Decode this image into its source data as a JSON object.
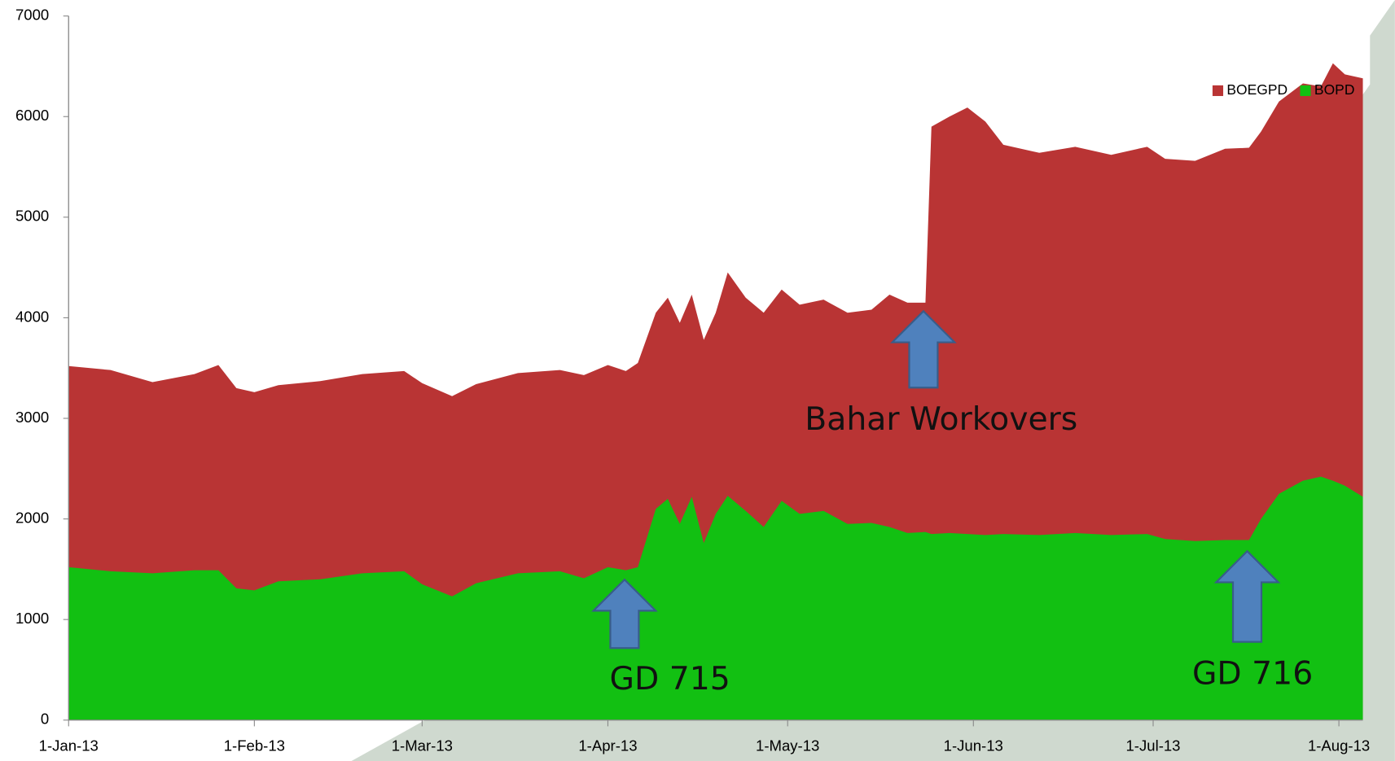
{
  "chart_data": {
    "type": "area",
    "x": [
      "2013-01-01",
      "2013-01-08",
      "2013-01-15",
      "2013-01-22",
      "2013-01-26",
      "2013-01-29",
      "2013-02-01",
      "2013-02-05",
      "2013-02-12",
      "2013-02-19",
      "2013-02-26",
      "2013-03-01",
      "2013-03-06",
      "2013-03-10",
      "2013-03-17",
      "2013-03-24",
      "2013-03-28",
      "2013-04-01",
      "2013-04-04",
      "2013-04-06",
      "2013-04-09",
      "2013-04-11",
      "2013-04-13",
      "2013-04-15",
      "2013-04-17",
      "2013-04-19",
      "2013-04-21",
      "2013-04-24",
      "2013-04-27",
      "2013-04-30",
      "2013-05-03",
      "2013-05-07",
      "2013-05-11",
      "2013-05-15",
      "2013-05-18",
      "2013-05-21",
      "2013-05-24",
      "2013-05-25",
      "2013-05-28",
      "2013-05-31",
      "2013-06-03",
      "2013-06-06",
      "2013-06-12",
      "2013-06-18",
      "2013-06-24",
      "2013-06-30",
      "2013-07-03",
      "2013-07-08",
      "2013-07-13",
      "2013-07-17",
      "2013-07-19",
      "2013-07-22",
      "2013-07-26",
      "2013-07-29",
      "2013-07-31",
      "2013-08-02",
      "2013-08-05"
    ],
    "series": [
      {
        "name": "BOEGPD",
        "color": "#b93434",
        "values": [
          3520,
          3480,
          3360,
          3440,
          3530,
          3300,
          3260,
          3330,
          3370,
          3440,
          3470,
          3350,
          3220,
          3340,
          3450,
          3480,
          3430,
          3530,
          3470,
          3550,
          4050,
          4200,
          3950,
          4230,
          3780,
          4050,
          4450,
          4200,
          4050,
          4280,
          4130,
          4180,
          4050,
          4080,
          4230,
          4150,
          4150,
          5900,
          6000,
          6090,
          5950,
          5720,
          5640,
          5700,
          5620,
          5700,
          5580,
          5560,
          5680,
          5690,
          5850,
          6150,
          6330,
          6300,
          6530,
          6420,
          6380
        ]
      },
      {
        "name": "BOPD",
        "color": "#12c012",
        "values": [
          1520,
          1480,
          1460,
          1490,
          1490,
          1310,
          1290,
          1380,
          1400,
          1460,
          1480,
          1350,
          1230,
          1360,
          1460,
          1480,
          1410,
          1520,
          1490,
          1520,
          2100,
          2200,
          1950,
          2220,
          1760,
          2050,
          2230,
          2080,
          1920,
          2180,
          2050,
          2080,
          1950,
          1960,
          1920,
          1860,
          1870,
          1850,
          1860,
          1850,
          1840,
          1850,
          1840,
          1860,
          1840,
          1850,
          1800,
          1780,
          1790,
          1790,
          2000,
          2250,
          2380,
          2420,
          2380,
          2330,
          2220
        ]
      }
    ],
    "xlim": [
      "2013-01-01",
      "2013-08-05"
    ],
    "xticks": [
      {
        "value": "2013-01-01",
        "label": "1-Jan-13"
      },
      {
        "value": "2013-02-01",
        "label": "1-Feb-13"
      },
      {
        "value": "2013-03-01",
        "label": "1-Mar-13"
      },
      {
        "value": "2013-04-01",
        "label": "1-Apr-13"
      },
      {
        "value": "2013-05-01",
        "label": "1-May-13"
      },
      {
        "value": "2013-06-01",
        "label": "1-Jun-13"
      },
      {
        "value": "2013-07-01",
        "label": "1-Jul-13"
      },
      {
        "value": "2013-08-01",
        "label": "1-Aug-13"
      }
    ],
    "ylim": [
      0,
      7000
    ],
    "yticks": [
      0,
      1000,
      2000,
      3000,
      4000,
      5000,
      6000,
      7000
    ],
    "grid": false,
    "legend": "top-right",
    "annotations": [
      "Bahar Workovers",
      "GD 715",
      "GD 716"
    ]
  }
}
